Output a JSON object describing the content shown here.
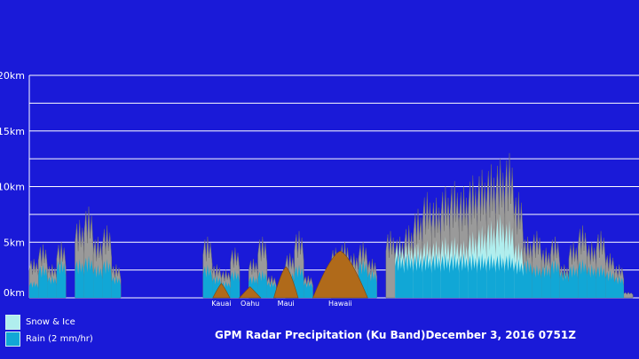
{
  "chart_data": {
    "type": "area",
    "title": "GPM Radar Precipitation (Ku Band)",
    "timestamp": "December 3, 2016 0751Z",
    "ylabel": "",
    "xlabel": "",
    "ylim": [
      0,
      20
    ],
    "y_unit": "km",
    "y_ticks": [
      "0km",
      "5km",
      "10km",
      "15km",
      "20km"
    ],
    "gridlines": [
      0,
      2.5,
      5,
      7.5,
      10,
      12.5,
      15,
      17.5,
      20
    ],
    "legend": {
      "placement": "bottom-left",
      "items": [
        {
          "label": "Snow & Ice",
          "color": "#b0eeee"
        },
        {
          "label": "Rain (2 mm/hr)",
          "color": "#11a7d6"
        }
      ]
    },
    "islands": [
      {
        "name": "Kauai",
        "x": 0.315,
        "width": 0.028,
        "peak_km": 1.3
      },
      {
        "name": "Oahu",
        "x": 0.362,
        "width": 0.035,
        "peak_km": 1.0
      },
      {
        "name": "Maui",
        "x": 0.421,
        "width": 0.04,
        "peak_km": 2.8
      },
      {
        "name": "Hawaii",
        "x": 0.51,
        "width": 0.09,
        "peak_km": 4.2
      }
    ],
    "series": [
      {
        "name": "Echo top",
        "color": "#9a9a9a",
        "x": [
          0.0,
          0.015,
          0.03,
          0.045,
          0.06,
          0.075,
          0.09,
          0.105,
          0.12,
          0.135,
          0.15,
          0.165,
          0.18,
          0.195,
          0.21,
          0.225,
          0.24,
          0.255,
          0.27,
          0.285,
          0.3,
          0.315,
          0.33,
          0.345,
          0.36,
          0.375,
          0.39,
          0.405,
          0.42,
          0.435,
          0.45,
          0.465,
          0.48,
          0.495,
          0.51,
          0.525,
          0.54,
          0.555,
          0.57,
          0.585,
          0.6,
          0.615,
          0.63,
          0.645,
          0.66,
          0.675,
          0.69,
          0.705,
          0.72,
          0.735,
          0.75,
          0.765,
          0.78,
          0.795,
          0.81,
          0.825,
          0.84,
          0.855,
          0.87,
          0.885,
          0.9,
          0.915,
          0.93,
          0.945,
          0.96,
          0.975,
          1.0
        ],
        "values": [
          3.5,
          4.8,
          3.0,
          5.0,
          0.0,
          7.0,
          8.2,
          5.5,
          6.5,
          3.0,
          0.0,
          0.0,
          0.0,
          0.0,
          0.0,
          0.0,
          0.0,
          0.0,
          0.0,
          5.5,
          3.0,
          2.5,
          4.5,
          0.0,
          3.5,
          5.5,
          2.0,
          0.0,
          4.0,
          6.0,
          2.0,
          0.0,
          0.0,
          4.5,
          5.0,
          4.0,
          5.0,
          3.5,
          0.0,
          6.0,
          5.5,
          6.5,
          8.0,
          9.5,
          9.0,
          10.0,
          10.5,
          10.0,
          11.0,
          11.5,
          12.0,
          12.5,
          13.0,
          9.5,
          5.5,
          6.0,
          4.5,
          5.5,
          3.0,
          5.0,
          6.5,
          5.0,
          6.0,
          4.0,
          3.0,
          0.5,
          0.0
        ]
      },
      {
        "name": "Snow & Ice",
        "color": "#b0eeee",
        "x": [
          0.6,
          0.615,
          0.63,
          0.645,
          0.66,
          0.675,
          0.69,
          0.705,
          0.72,
          0.735,
          0.75,
          0.765,
          0.78,
          0.795
        ],
        "values": [
          5.0,
          5.0,
          5.0,
          5.2,
          5.2,
          5.5,
          5.5,
          5.2,
          6.0,
          6.5,
          7.0,
          7.5,
          7.0,
          5.0
        ]
      },
      {
        "name": "Rain (2 mm/hr)",
        "color": "#11a7d6",
        "x": [
          0.0,
          0.015,
          0.03,
          0.045,
          0.06,
          0.075,
          0.09,
          0.105,
          0.12,
          0.135,
          0.15,
          0.165,
          0.285,
          0.3,
          0.315,
          0.33,
          0.345,
          0.36,
          0.375,
          0.39,
          0.405,
          0.42,
          0.435,
          0.45,
          0.465,
          0.495,
          0.51,
          0.525,
          0.54,
          0.555,
          0.6,
          0.615,
          0.63,
          0.645,
          0.66,
          0.675,
          0.69,
          0.705,
          0.72,
          0.735,
          0.75,
          0.765,
          0.78,
          0.795,
          0.81,
          0.825,
          0.84,
          0.855,
          0.87,
          0.885,
          0.9,
          0.915,
          0.93,
          0.945,
          0.96
        ],
        "values": [
          1.5,
          3.0,
          2.0,
          3.5,
          0.0,
          3.5,
          3.8,
          3.0,
          3.5,
          2.0,
          0.0,
          0.0,
          3.0,
          2.0,
          1.5,
          2.5,
          0.0,
          2.0,
          2.5,
          1.5,
          0.0,
          2.5,
          3.0,
          1.5,
          0.0,
          2.5,
          3.0,
          2.5,
          3.5,
          2.5,
          4.0,
          4.0,
          4.0,
          4.0,
          4.0,
          4.0,
          4.0,
          4.0,
          4.0,
          4.0,
          4.0,
          4.0,
          4.0,
          3.5,
          3.5,
          3.0,
          3.0,
          3.5,
          2.5,
          3.0,
          3.5,
          3.0,
          3.0,
          2.5,
          2.0
        ]
      }
    ]
  }
}
